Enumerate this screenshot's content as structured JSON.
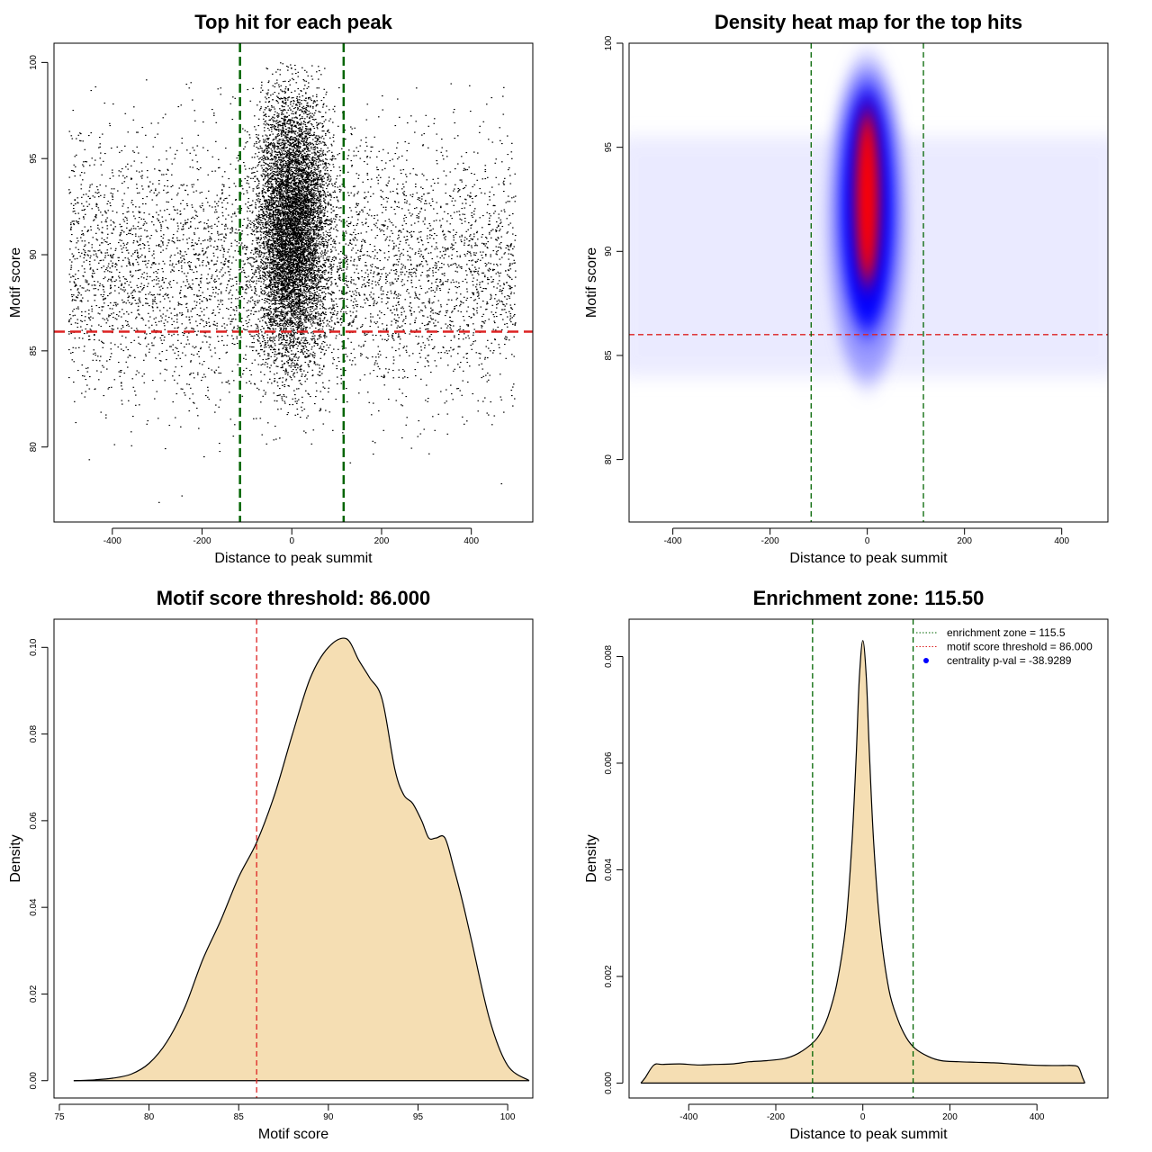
{
  "chart_data": [
    {
      "type": "scatter",
      "title": "Top hit for each peak",
      "xlabel": "Distance to peak summit",
      "ylabel": "Motif score",
      "xlim": [
        -530,
        537
      ],
      "ylim": [
        76.1,
        101.0
      ],
      "xticks": [
        -400,
        -200,
        0,
        200,
        400
      ],
      "yticks": [
        80,
        85,
        90,
        95,
        100
      ],
      "threshold": 86.0,
      "enrichment_zone": [
        -115.5,
        115.5
      ],
      "colors": {
        "points": "#000000",
        "threshold": "#dd2222",
        "zone": "#006400"
      }
    },
    {
      "type": "heatmap",
      "title": "Density heat map for the top hits",
      "xlabel": "Distance to peak summit",
      "ylabel": "Motif score",
      "xlim": [
        -490,
        495
      ],
      "ylim": [
        77.0,
        100.0
      ],
      "xticks": [
        -400,
        -200,
        0,
        200,
        400
      ],
      "yticks": [
        80,
        85,
        90,
        95,
        100
      ],
      "threshold": 86.0,
      "enrichment_zone": [
        -115.5,
        115.5
      ],
      "colors": {
        "low": "#ffffff",
        "mid": "#0000ff",
        "high": "#ff0000",
        "threshold": "#dd2222",
        "zone": "#006400"
      }
    },
    {
      "type": "area",
      "title": "Motif score threshold: 86.000",
      "xlabel": "Motif score",
      "ylabel": "Density",
      "xlim": [
        74.7,
        101.4
      ],
      "ylim": [
        -0.004,
        0.1065
      ],
      "xticks": [
        75,
        80,
        85,
        90,
        95,
        100
      ],
      "yticks": [
        0.0,
        0.02,
        0.04,
        0.06,
        0.08,
        0.1
      ],
      "ytick_labels": [
        "0.00",
        "0.02",
        "0.04",
        "0.06",
        "0.08",
        "0.10"
      ],
      "threshold": 86.0,
      "x": [
        75.8,
        77,
        78,
        79,
        80,
        81,
        82,
        83,
        84,
        85,
        86,
        87,
        88,
        89,
        90,
        91,
        91.7,
        92.3,
        93,
        93.7,
        94.2,
        94.7,
        95.2,
        95.6,
        96,
        96.5,
        97,
        97.5,
        98,
        99,
        100,
        101.2
      ],
      "values": [
        0.0,
        0.0002,
        0.0006,
        0.0015,
        0.004,
        0.009,
        0.017,
        0.028,
        0.037,
        0.047,
        0.055,
        0.066,
        0.08,
        0.093,
        0.1,
        0.102,
        0.097,
        0.093,
        0.088,
        0.072,
        0.066,
        0.064,
        0.06,
        0.056,
        0.056,
        0.056,
        0.049,
        0.041,
        0.032,
        0.014,
        0.0035,
        0.0
      ],
      "colors": {
        "fill": "#f5deb3",
        "line": "#000000",
        "threshold": "#dd2222"
      }
    },
    {
      "type": "area",
      "title": "Enrichment zone: 115.50",
      "xlabel": "Distance to peak summit",
      "ylabel": "Density",
      "xlim": [
        -537,
        563
      ],
      "ylim": [
        -0.00028,
        0.0087
      ],
      "xticks": [
        -400,
        -200,
        0,
        200,
        400
      ],
      "yticks": [
        0.0,
        0.002,
        0.004,
        0.006,
        0.008
      ],
      "ytick_labels": [
        "0.000",
        "0.002",
        "0.004",
        "0.006",
        "0.008"
      ],
      "enrichment_zone": [
        -115.5,
        115.5
      ],
      "x": [
        -510,
        -500,
        -480,
        -460,
        -420,
        -380,
        -340,
        -300,
        -260,
        -220,
        -180,
        -150,
        -120,
        -100,
        -80,
        -60,
        -40,
        -25,
        -15,
        -8,
        0,
        8,
        15,
        25,
        40,
        60,
        80,
        100,
        120,
        150,
        180,
        220,
        260,
        300,
        340,
        380,
        420,
        460,
        480,
        495,
        505,
        510
      ],
      "values": [
        0.0,
        0.0001,
        0.00034,
        0.00035,
        0.00036,
        0.00034,
        0.00035,
        0.00036,
        0.0004,
        0.00042,
        0.00046,
        0.00055,
        0.00072,
        0.0009,
        0.00125,
        0.00185,
        0.0029,
        0.0045,
        0.0062,
        0.0076,
        0.0083,
        0.0076,
        0.0062,
        0.0045,
        0.0029,
        0.00175,
        0.0012,
        0.00085,
        0.00065,
        0.0005,
        0.00042,
        0.0004,
        0.00039,
        0.00038,
        0.00036,
        0.00034,
        0.00033,
        0.00033,
        0.00033,
        0.0003,
        0.0001,
        0.0
      ],
      "colors": {
        "fill": "#f5deb3",
        "line": "#000000",
        "zone": "#006400",
        "threshold": "#dd2222",
        "pval": "#0000ff"
      },
      "legend": {
        "placement": "top-right",
        "entries": [
          {
            "label": "enrichment zone = 115.5",
            "style": "dotted-green"
          },
          {
            "label": "motif score threshold = 86.000",
            "style": "dotted-red"
          },
          {
            "label": "centrality p-val = -38.9289",
            "style": "blue-dot"
          }
        ]
      }
    }
  ]
}
